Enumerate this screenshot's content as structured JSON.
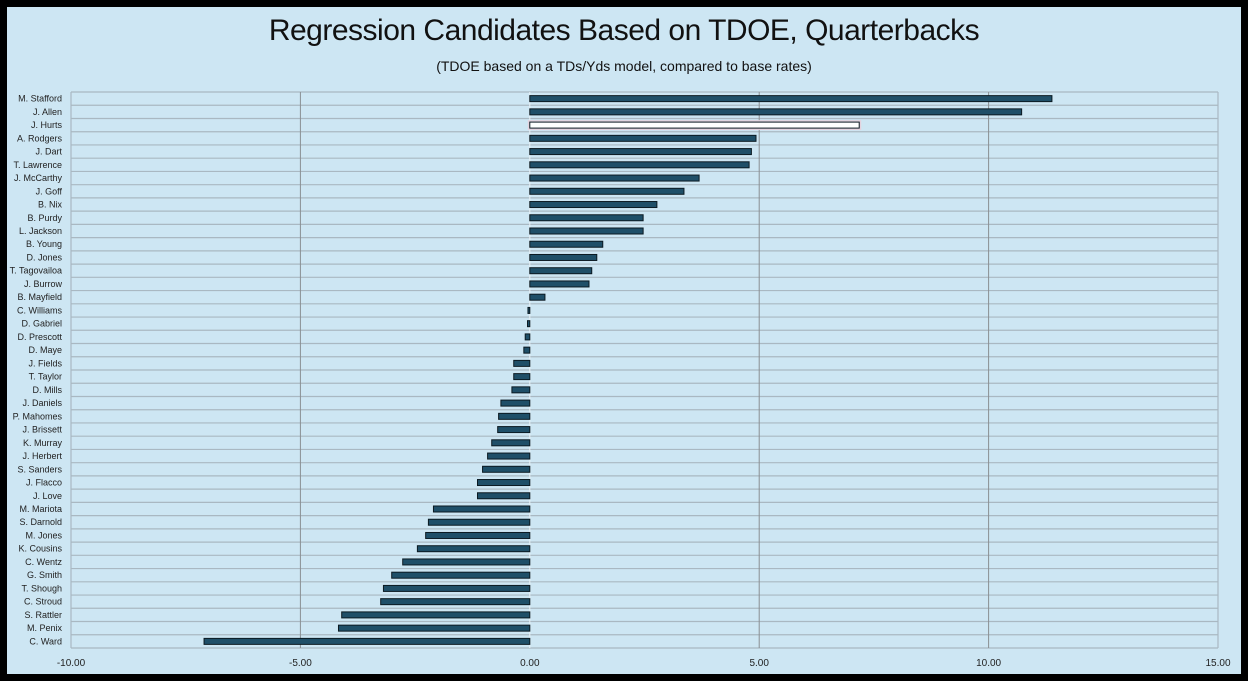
{
  "chart_data": {
    "type": "bar",
    "orientation": "horizontal",
    "title": "Regression Candidates Based on TDOE, Quarterbacks",
    "subtitle": "(TDOE based on a TDs/Yds model, compared to base rates)",
    "xlabel": "",
    "ylabel": "",
    "xlim": [
      -10,
      15
    ],
    "xticks": [
      "-10.00",
      "-5.00",
      "0.00",
      "5.00",
      "10.00",
      "15.00"
    ],
    "xtick_values": [
      -10,
      -5,
      0,
      5,
      10,
      15
    ],
    "grid": true,
    "highlight": "J. Hurts",
    "colors": {
      "bar": "#1f4f68",
      "highlight": "#ffffff",
      "background": "#cde6f3"
    },
    "categories": [
      "M. Stafford",
      "J. Allen",
      "J. Hurts",
      "A. Rodgers",
      "J. Dart",
      "T. Lawrence",
      "J. McCarthy",
      "J. Goff",
      "B. Nix",
      "B. Purdy",
      "L. Jackson",
      "B. Young",
      "D. Jones",
      "T. Tagovailoa",
      "J. Burrow",
      "B. Mayfield",
      "C. Williams",
      "D. Gabriel",
      "D. Prescott",
      "D. Maye",
      "J. Fields",
      "T. Taylor",
      "D. Mills",
      "J. Daniels",
      "P. Mahomes",
      "J. Brissett",
      "K. Murray",
      "J. Herbert",
      "S. Sanders",
      "J. Flacco",
      "J. Love",
      "M. Mariota",
      "S. Darnold",
      "M. Jones",
      "K. Cousins",
      "C. Wentz",
      "G. Smith",
      "T. Shough",
      "C. Stroud",
      "S. Rattler",
      "M. Penix",
      "C. Ward"
    ],
    "values": [
      11.38,
      10.72,
      7.18,
      4.93,
      4.83,
      4.78,
      3.69,
      3.36,
      2.77,
      2.47,
      2.47,
      1.59,
      1.46,
      1.35,
      1.29,
      0.33,
      -0.04,
      -0.05,
      -0.1,
      -0.13,
      -0.35,
      -0.35,
      -0.39,
      -0.63,
      -0.68,
      -0.7,
      -0.83,
      -0.92,
      -1.03,
      -1.14,
      -1.14,
      -2.1,
      -2.21,
      -2.27,
      -2.45,
      -2.77,
      -3.01,
      -3.19,
      -3.25,
      -4.1,
      -4.17,
      -7.1
    ]
  }
}
